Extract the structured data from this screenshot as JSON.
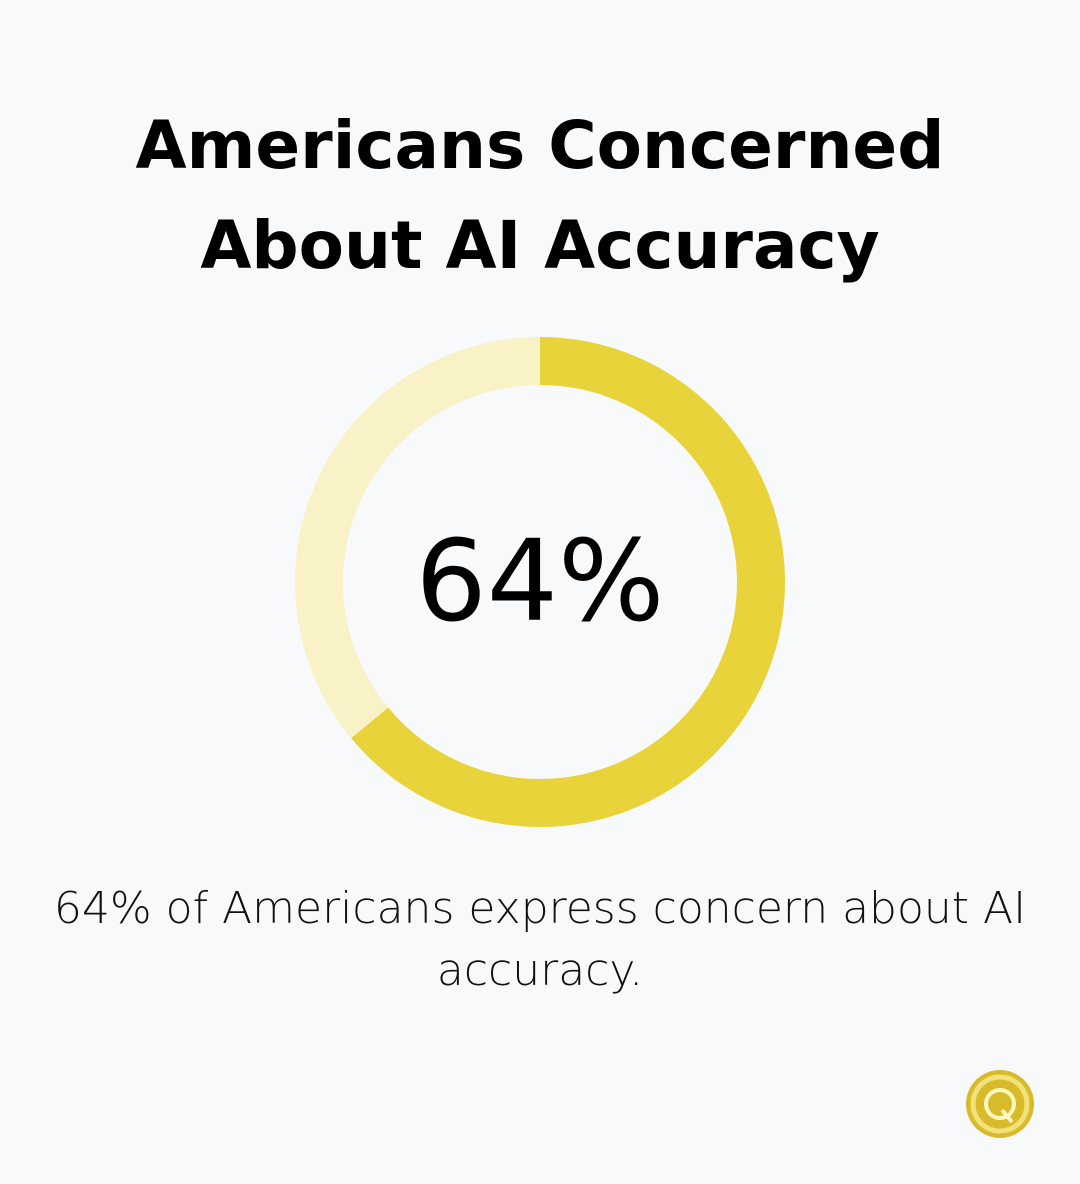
{
  "chart_data": {
    "type": "donut",
    "title": "Americans Concerned About AI Accuracy",
    "values": [
      64
    ],
    "value_labels": [
      "64%"
    ],
    "ylim": [
      0,
      100
    ],
    "caption": "64% of Americans express concern about AI accuracy.",
    "color": "#e8d43a",
    "track_color": "#f8f2c6"
  }
}
